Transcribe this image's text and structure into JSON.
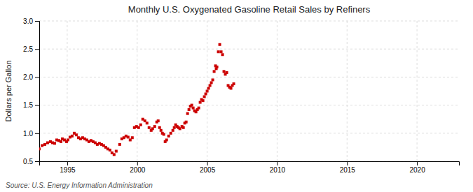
{
  "chart_data": {
    "type": "scatter",
    "title": "Monthly U.S. Oxygenated Gasoline Retail Sales by Refiners",
    "ylabel": "Dollars per Gallon",
    "source": "Source: U.S. Energy Information Administration",
    "color": "#cc0000",
    "marker": "square",
    "grid": true,
    "xlim": [
      1993.0,
      2023.0
    ],
    "ylim": [
      0.5,
      3.0
    ],
    "xticks": [
      1995,
      2000,
      2005,
      2010,
      2015,
      2020
    ],
    "yticks": [
      0.5,
      {
        "value": 1.0,
        "label": "1.0"
      },
      1.5,
      {
        "value": 2.0,
        "label": "2.0"
      },
      2.5,
      {
        "value": 3.0,
        "label": "3.0"
      }
    ],
    "x": [
      1993.0,
      1993.2,
      1993.4,
      1993.6,
      1993.8,
      1993.95,
      1994.1,
      1994.25,
      1994.4,
      1994.55,
      1994.65,
      1994.8,
      1994.95,
      1995.05,
      1995.2,
      1995.35,
      1995.5,
      1995.65,
      1995.8,
      1995.95,
      1996.1,
      1996.25,
      1996.4,
      1996.55,
      1996.7,
      1996.85,
      1997.0,
      1997.15,
      1997.3,
      1997.45,
      1997.6,
      1997.75,
      1997.9,
      1998.05,
      1998.2,
      1998.35,
      1998.5,
      1998.75,
      1998.9,
      1999.05,
      1999.2,
      1999.35,
      1999.5,
      1999.65,
      1999.8,
      1999.95,
      2000.1,
      2000.25,
      2000.4,
      2000.55,
      2000.7,
      2000.85,
      2001.0,
      2001.1,
      2001.25,
      2001.4,
      2001.5,
      2001.6,
      2001.7,
      2001.8,
      2001.9,
      2002.0,
      2002.1,
      2002.25,
      2002.4,
      2002.55,
      2002.65,
      2002.75,
      2002.85,
      2002.95,
      2003.05,
      2003.2,
      2003.3,
      2003.4,
      2003.5,
      2003.6,
      2003.7,
      2003.8,
      2003.9,
      2004.0,
      2004.1,
      2004.2,
      2004.3,
      2004.4,
      2004.5,
      2004.6,
      2004.7,
      2004.8,
      2004.9,
      2005.0,
      2005.1,
      2005.2,
      2005.3,
      2005.4,
      2005.5,
      2005.6,
      2005.65,
      2005.7,
      2005.8,
      2005.9,
      2006.0,
      2006.1,
      2006.2,
      2006.3,
      2006.4,
      2006.5,
      2006.6,
      2006.7,
      2006.8,
      2006.9
    ],
    "values": [
      0.72,
      0.78,
      0.8,
      0.83,
      0.85,
      0.83,
      0.82,
      0.88,
      0.87,
      0.85,
      0.9,
      0.88,
      0.85,
      0.88,
      0.93,
      0.95,
      1.0,
      0.97,
      0.92,
      0.9,
      0.92,
      0.9,
      0.88,
      0.85,
      0.87,
      0.85,
      0.83,
      0.8,
      0.82,
      0.8,
      0.78,
      0.75,
      0.72,
      0.7,
      0.65,
      0.62,
      0.68,
      0.8,
      0.9,
      0.92,
      0.95,
      0.93,
      0.88,
      0.92,
      1.1,
      1.12,
      1.1,
      1.15,
      1.25,
      1.22,
      1.18,
      1.1,
      1.05,
      1.08,
      1.12,
      1.2,
      1.22,
      1.1,
      1.05,
      1.0,
      0.98,
      0.85,
      0.88,
      0.95,
      1.0,
      1.05,
      1.1,
      1.15,
      1.12,
      1.1,
      1.08,
      1.12,
      1.1,
      1.18,
      1.2,
      1.35,
      1.42,
      1.48,
      1.5,
      1.45,
      1.4,
      1.38,
      1.42,
      1.45,
      1.55,
      1.6,
      1.58,
      1.65,
      1.7,
      1.75,
      1.8,
      1.85,
      1.9,
      1.95,
      2.1,
      2.2,
      2.15,
      2.18,
      2.45,
      2.58,
      2.45,
      2.4,
      2.1,
      2.05,
      2.08,
      1.85,
      1.82,
      1.8,
      1.85,
      1.88
    ]
  }
}
